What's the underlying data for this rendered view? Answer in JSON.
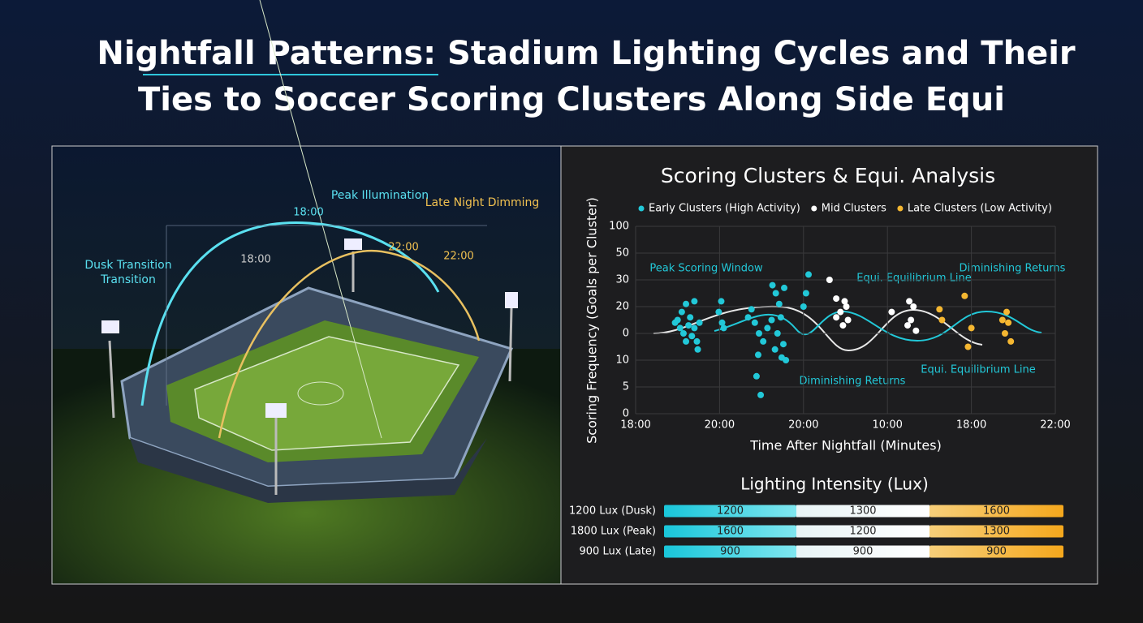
{
  "title_lines": [
    "Nightfall Patterns: Stadium Lighting Cycles and Their",
    "Ties to Soccer Scoring Clusters Along Side Equi"
  ],
  "illustration": {
    "labels": [
      "Dusk Transition",
      "Peak Illumination",
      "Late Night Dimming"
    ],
    "times": [
      "18:00",
      "18:00",
      "22:00",
      "22:00"
    ]
  },
  "chart_data": {
    "type": "scatter",
    "title": "Scoring Clusters & Equi. Analysis",
    "x_label": "Time After Nightfall (Minutes)",
    "y_label": "Scoring Frequency (Goals per Cluster)",
    "xlim": [
      0,
      5
    ],
    "xticks": [
      {
        "value": 0,
        "label": "18:00"
      },
      {
        "value": 1,
        "label": "20:00"
      },
      {
        "value": 2,
        "label": "20:00"
      },
      {
        "value": 3,
        "label": "10:00"
      },
      {
        "value": 4,
        "label": "18:00"
      },
      {
        "value": 5,
        "label": "22:00"
      }
    ],
    "ylim": [
      0,
      7
    ],
    "yticks": [
      {
        "value": 0,
        "label": "0"
      },
      {
        "value": 1,
        "label": "5"
      },
      {
        "value": 2,
        "label": "10"
      },
      {
        "value": 3,
        "label": "0"
      },
      {
        "value": 4,
        "label": "20"
      },
      {
        "value": 5,
        "label": "30"
      },
      {
        "value": 6,
        "label": "50"
      },
      {
        "value": 7,
        "label": "100"
      }
    ],
    "grid": true,
    "annotations": [
      "Peak Scoring Window",
      "Equi. Equilibrium Line",
      "Diminishing Returns",
      "Diminishing Returns",
      "Equi. Equilibrium Line"
    ],
    "series": [
      {
        "name": "Early Clusters (High Activity)",
        "color": "#22c8d8",
        "x": [
          0.5,
          0.55,
          0.6,
          0.65,
          0.7,
          0.63,
          0.53,
          0.57,
          0.67,
          0.73,
          0.74,
          0.6,
          0.47,
          0.76,
          0.7,
          1.02,
          0.99,
          1.03,
          1.05,
          1.34,
          1.38,
          1.42,
          1.47,
          1.52,
          1.57,
          1.62,
          1.46,
          1.44,
          1.49,
          1.63,
          1.67,
          1.71,
          1.73,
          1.69,
          1.76,
          1.74,
          1.66,
          1.79,
          1.77,
          2.03,
          2.06,
          2.0
        ],
        "values": [
          3.5,
          3.8,
          4.1,
          3.6,
          4.2,
          3.3,
          3.2,
          3.0,
          2.9,
          2.7,
          2.4,
          2.7,
          3.4,
          3.4,
          3.2,
          4.2,
          3.8,
          3.4,
          3.2,
          3.6,
          3.9,
          3.4,
          3.0,
          2.7,
          3.2,
          3.5,
          2.2,
          1.4,
          0.7,
          4.8,
          4.5,
          4.1,
          3.6,
          3.0,
          2.6,
          2.1,
          2.4,
          2.0,
          4.7,
          4.5,
          5.2,
          4.0
        ]
      },
      {
        "name": "Mid Clusters",
        "color": "#ffffff",
        "x": [
          2.31,
          2.39,
          2.49,
          2.44,
          2.51,
          2.39,
          2.53,
          2.47,
          3.05,
          3.26,
          3.31,
          3.28,
          3.34,
          3.24
        ],
        "values": [
          5.0,
          4.3,
          4.2,
          3.8,
          4.0,
          3.6,
          3.5,
          3.3,
          3.8,
          4.2,
          4.0,
          3.5,
          3.1,
          3.3
        ]
      },
      {
        "name": "Late Clusters (Low Activity)",
        "color": "#f5b731",
        "x": [
          3.62,
          3.65,
          3.92,
          4.0,
          3.96,
          4.42,
          4.44,
          4.4,
          4.47,
          4.37
        ],
        "values": [
          3.9,
          3.5,
          4.4,
          3.2,
          2.5,
          3.8,
          3.4,
          3.0,
          2.7,
          3.5
        ]
      }
    ]
  },
  "lighting": {
    "title": "Lighting Intensity (Lux)",
    "rows": [
      {
        "label": "1200 Lux (Dusk)",
        "values": [
          1200,
          1300,
          1600
        ]
      },
      {
        "label": "1800 Lux (Peak)",
        "values": [
          1600,
          1200,
          1300
        ]
      },
      {
        "label": "900 Lux (Late)",
        "values": [
          900,
          900,
          900
        ]
      }
    ]
  }
}
